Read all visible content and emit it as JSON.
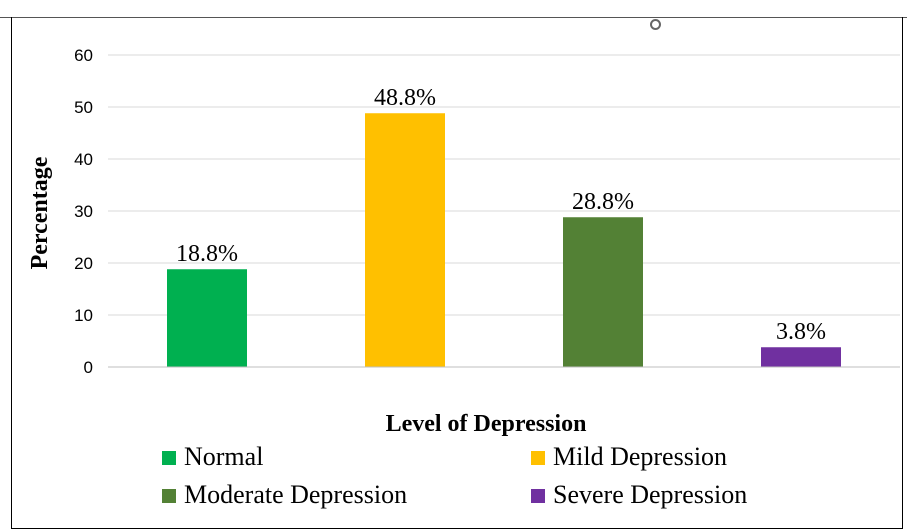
{
  "chart_data": {
    "type": "bar",
    "categories": [
      "Normal",
      "Mild Depression",
      "Moderate Depression",
      "Severe Depression"
    ],
    "values": [
      18.8,
      48.8,
      28.8,
      3.8
    ],
    "data_labels": [
      "18.8%",
      "48.8%",
      "28.8%",
      "3.8%"
    ],
    "colors": [
      "#00b050",
      "#ffc000",
      "#538135",
      "#7030a0"
    ],
    "xlabel": "Level of Depression",
    "ylabel": "Percentage",
    "ylim": [
      0,
      60
    ],
    "yticks": [
      0,
      10,
      20,
      30,
      40,
      50,
      60
    ],
    "ytick_labels": [
      "0",
      "10",
      "20",
      "30",
      "40",
      "50",
      "60"
    ],
    "grid": true,
    "legend_position": "bottom",
    "legend": [
      "Normal",
      "Mild Depression",
      "Moderate Depression",
      "Severe Depression"
    ]
  }
}
